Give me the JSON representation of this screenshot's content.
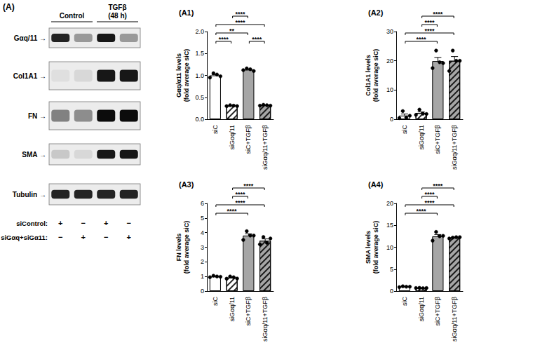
{
  "blot": {
    "title": "(A)",
    "groups": [
      [
        "Control"
      ],
      [
        "TGFβ",
        "(48 h)"
      ]
    ],
    "bands": [
      {
        "label": "Gαq/11 →",
        "intensity": [
          0.85,
          0.35,
          0.9,
          0.35
        ]
      },
      {
        "label": "Col1A1 →",
        "intensity": [
          0.05,
          0.08,
          0.9,
          0.9
        ]
      },
      {
        "label": "FN →",
        "intensity": [
          0.45,
          0.4,
          0.95,
          0.95
        ]
      },
      {
        "label": "SMA →",
        "intensity": [
          0.15,
          0.08,
          0.9,
          0.9
        ]
      },
      {
        "label": "Tubulin →",
        "intensity": [
          0.85,
          0.85,
          0.85,
          0.85
        ]
      }
    ],
    "conditions": [
      {
        "label": "siControl:",
        "signs": [
          "+",
          "−",
          "+",
          "−"
        ]
      },
      {
        "label": "siGαq+siGα11:",
        "signs": [
          "−",
          "+",
          "−",
          "+"
        ]
      }
    ]
  },
  "chart_data": [
    {
      "type": "bar",
      "title": "(A1)",
      "y_label": [
        "Gαq/α11 levels",
        "(fold average siC)"
      ],
      "categories": [
        "siC",
        "siGαq/11",
        "siC+TGFβ",
        "siGαq/11+TGFβ"
      ],
      "values": [
        1.0,
        0.31,
        1.13,
        0.32
      ],
      "errors": [
        0.02,
        0.005,
        0.013,
        0.005
      ],
      "points": [
        [
          0.95,
          1.05,
          1.02,
          0.98
        ],
        [
          0.3,
          0.32,
          0.31,
          0.3
        ],
        [
          1.12,
          1.16,
          1.14,
          1.1
        ],
        [
          0.31,
          0.33,
          0.32,
          0.31
        ]
      ],
      "colors": [
        "#ffffff",
        "#ffffff",
        "#a6a6a6",
        "#a6a6a6"
      ],
      "ylim": [
        0,
        2
      ],
      "yticks": [
        {
          "value": 0,
          "label": "0.0"
        },
        {
          "value": 0.5,
          "label": "0.5"
        },
        {
          "value": 1,
          "label": "1.0"
        },
        {
          "value": 1.5,
          "label": "1.5"
        },
        {
          "value": 2,
          "label": "2.0"
        }
      ],
      "grid": false,
      "annotations": [
        {
          "from": "siC",
          "to": "siGαq/11",
          "label": "****"
        },
        {
          "from": "siC+TGFβ",
          "to": "siGαq/11+TGFβ",
          "label": "****"
        },
        {
          "from": "siC",
          "to": "siC+TGFβ",
          "label": "**"
        },
        {
          "from": "siC",
          "to": "siGαq/11+TGFβ",
          "label": "****"
        },
        {
          "from": "siGαq/11",
          "to": "siC+TGFβ",
          "label": "****"
        }
      ]
    },
    {
      "type": "bar",
      "title": "(A2)",
      "y_label": [
        "Col1A1 levels",
        "(fold average siC)"
      ],
      "categories": [
        "siC",
        "siGαq/11",
        "siC+TGFβ",
        "siGαq/11+TGFβ"
      ],
      "values": [
        1.25,
        2.1,
        19.9,
        20.0
      ],
      "errors": [
        0.55,
        0.4,
        1.25,
        1.45
      ],
      "points": [
        [
          0.4,
          2.8,
          0.6,
          1.2
        ],
        [
          1.5,
          3.3,
          1.9,
          1.8
        ],
        [
          17.5,
          23.5,
          19.5,
          19.2
        ],
        [
          16.5,
          23.5,
          20.0,
          20.0
        ]
      ],
      "colors": [
        "#ffffff",
        "#ffffff",
        "#a6a6a6",
        "#a6a6a6"
      ],
      "ylim": [
        0,
        30
      ],
      "yticks": [
        0,
        10,
        20,
        30
      ],
      "grid": false,
      "annotations": [
        {
          "from": "siC",
          "to": "siC+TGFβ",
          "label": "****"
        },
        {
          "from": "siC",
          "to": "siGαq/11+TGFβ",
          "label": "****"
        },
        {
          "from": "siGαq/11",
          "to": "siC+TGFβ",
          "label": "****"
        },
        {
          "from": "siGαq/11",
          "to": "siGαq/11+TGFβ",
          "label": "****"
        }
      ]
    },
    {
      "type": "bar",
      "title": "(A3)",
      "y_label": [
        "FN levels",
        "(fold average siC)"
      ],
      "categories": [
        "siC",
        "siGαq/11",
        "siC+TGFβ",
        "siGαq/11+TGFβ"
      ],
      "values": [
        1.0,
        0.92,
        3.8,
        3.45
      ],
      "errors": [
        0.02,
        0.035,
        0.12,
        0.12
      ],
      "points": [
        [
          0.95,
          1.05,
          1.0,
          0.98
        ],
        [
          0.85,
          1.0,
          0.95,
          0.86
        ],
        [
          3.5,
          4.1,
          3.8,
          3.8
        ],
        [
          3.2,
          3.7,
          3.3,
          3.6
        ]
      ],
      "colors": [
        "#ffffff",
        "#ffffff",
        "#a6a6a6",
        "#a6a6a6"
      ],
      "ylim": [
        0,
        6
      ],
      "yticks": [
        0,
        1,
        2,
        3,
        4,
        5,
        6
      ],
      "grid": false,
      "annotations": [
        {
          "from": "siC",
          "to": "siC+TGFβ",
          "label": "****"
        },
        {
          "from": "siC",
          "to": "siGαq/11+TGFβ",
          "label": "****"
        },
        {
          "from": "siGαq/11",
          "to": "siC+TGFβ",
          "label": "****"
        },
        {
          "from": "siGαq/11",
          "to": "siGαq/11+TGFβ",
          "label": "****"
        }
      ]
    },
    {
      "type": "bar",
      "title": "(A4)",
      "y_label": [
        "SMA levels",
        "(fold average siC)"
      ],
      "categories": [
        "siC",
        "siGαq/11",
        "siC+TGFβ",
        "siGαq/11+TGFβ"
      ],
      "values": [
        1.0,
        0.7,
        12.5,
        12.2
      ],
      "errors": [
        0.04,
        0.02,
        0.4,
        0.07
      ],
      "points": [
        [
          0.9,
          1.1,
          1.0,
          1.0
        ],
        [
          0.7,
          0.75,
          0.65,
          0.7
        ],
        [
          11.5,
          13.5,
          12.5,
          12.6
        ],
        [
          12.0,
          12.2,
          12.3,
          12.3
        ]
      ],
      "colors": [
        "#ffffff",
        "#ffffff",
        "#a6a6a6",
        "#a6a6a6"
      ],
      "ylim": [
        0,
        20
      ],
      "yticks": [
        0,
        5,
        10,
        15,
        20
      ],
      "grid": false,
      "annotations": [
        {
          "from": "siC",
          "to": "siC+TGFβ",
          "label": "****"
        },
        {
          "from": "siC",
          "to": "siGαq/11+TGFβ",
          "label": "****"
        },
        {
          "from": "siGαq/11",
          "to": "siC+TGFβ",
          "label": "****"
        },
        {
          "from": "siGαq/11",
          "to": "siGαq/11+TGFβ",
          "label": "****"
        }
      ]
    }
  ]
}
